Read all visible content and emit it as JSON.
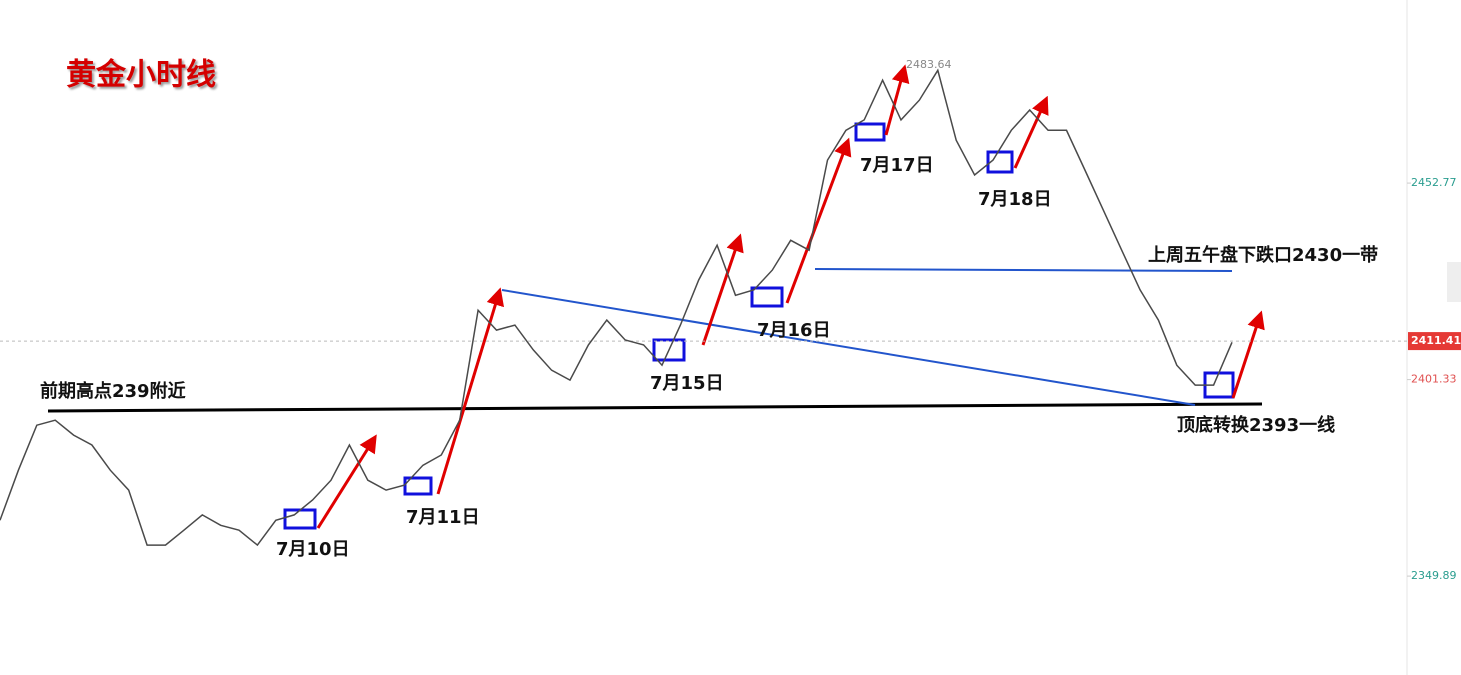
{
  "chart_data": {
    "type": "line",
    "title": "黄金小时线",
    "categories": [
      null,
      null,
      null,
      null,
      null,
      null,
      null,
      null,
      null,
      null,
      null,
      null,
      null,
      null,
      null,
      null,
      null,
      null,
      null,
      null,
      null,
      null,
      null,
      null,
      null,
      null,
      null,
      null,
      null,
      null,
      null,
      null,
      null,
      null,
      null,
      null,
      null,
      null,
      null,
      null,
      null,
      null,
      null,
      null,
      null,
      null,
      null,
      null,
      null,
      null,
      null,
      null,
      null,
      null,
      null,
      null,
      null,
      null,
      null,
      null,
      null,
      null,
      null,
      null,
      null,
      null,
      null,
      null
    ],
    "series": [
      {
        "name": null,
        "color": "#4a4a4a",
        "values": [
          2364.5,
          2377.6,
          2389.4,
          2390.7,
          2386.8,
          2384.2,
          2377.6,
          2372.4,
          2358.0,
          2358.0,
          2361.9,
          2365.9,
          2363.2,
          2361.9,
          2358.0,
          2364.5,
          2365.9,
          2369.8,
          2375.0,
          2384.2,
          2375.0,
          2372.4,
          2373.7,
          2378.9,
          2381.6,
          2390.7,
          2419.5,
          2414.3,
          2415.6,
          2409.1,
          2403.8,
          2401.2,
          2410.4,
          2416.9,
          2411.7,
          2410.4,
          2405.1,
          2415.6,
          2427.4,
          2436.5,
          2423.4,
          2424.8,
          2430.0,
          2437.8,
          2435.2,
          2458.8,
          2466.6,
          2469.3,
          2479.7,
          2469.3,
          2474.5,
          2482.3,
          2464.0,
          2454.9,
          2458.8,
          2466.6,
          2471.9,
          2466.6,
          2466.6,
          2456.2,
          2445.7,
          2435.2,
          2424.8,
          2416.9,
          2405.1,
          2399.9,
          2399.9,
          2411.1
        ]
      }
    ],
    "ylim": [
      2324,
      2500.7
    ],
    "yticks": [
      2452.77,
      2401.33,
      2349.89
    ],
    "last_price": 2411.41,
    "high_label": 2483.64,
    "annotations": [
      "前期高点239附近",
      "7月10日",
      "7月11日",
      "7月15日",
      "7月16日",
      "7月17日",
      "7月18日",
      "上周五午盘下跌口2430一带",
      "顶底转换2393一线"
    ]
  }
}
